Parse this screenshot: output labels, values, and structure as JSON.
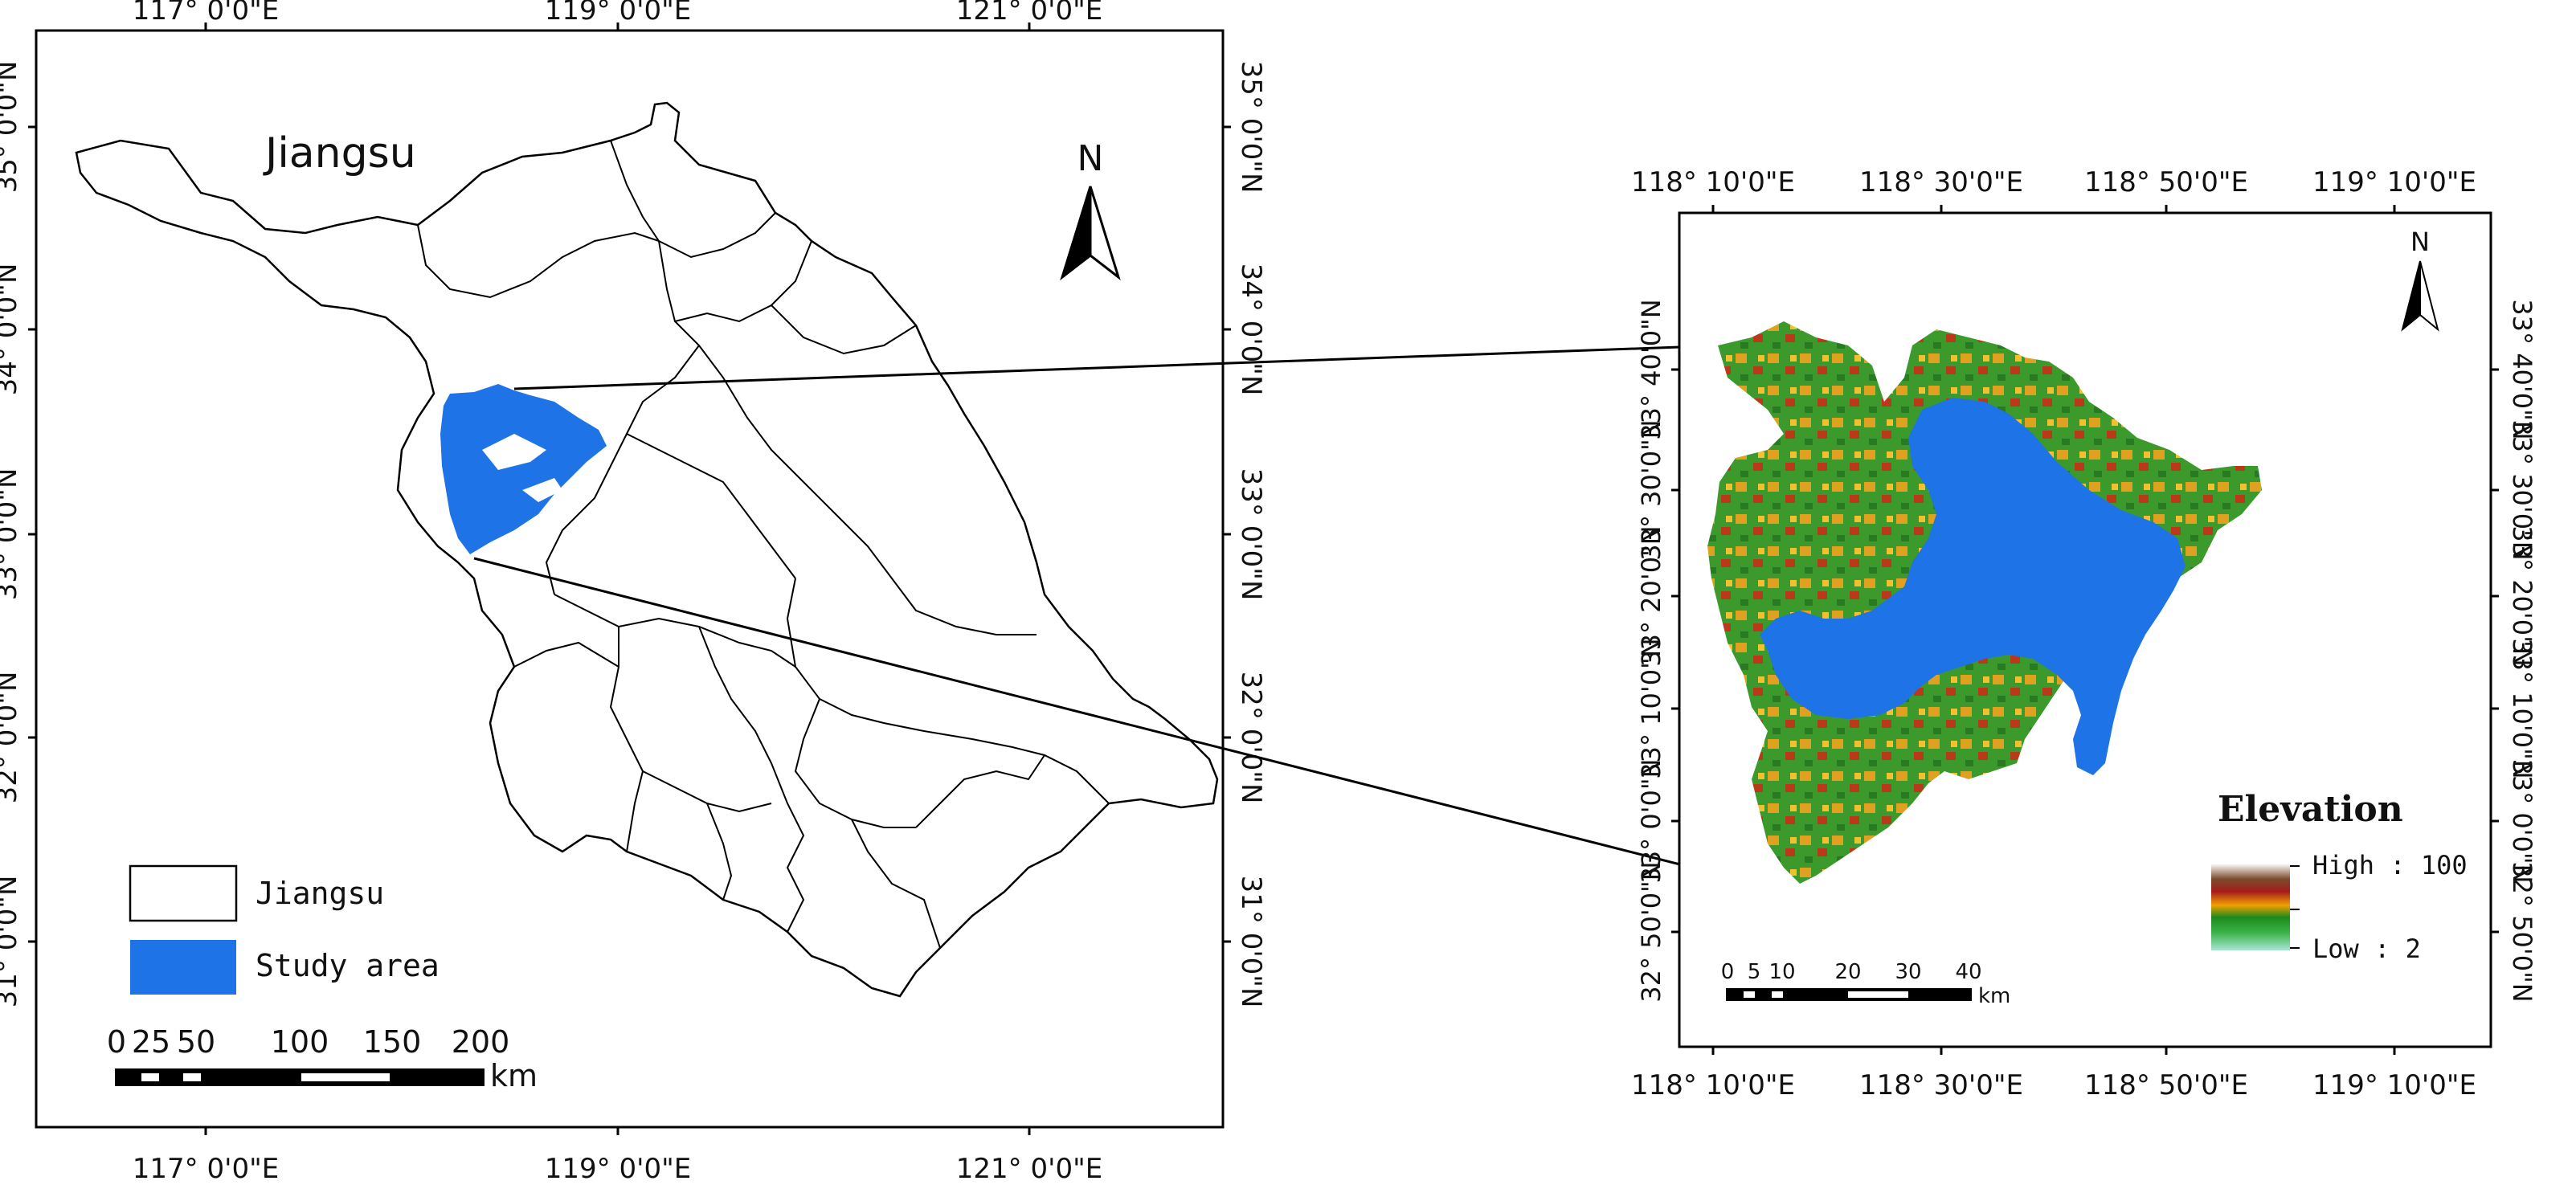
{
  "left_map": {
    "top_lon_labels": [
      "117°  0'0\"E",
      "119°  0'0\"E",
      "121°  0'0\"E"
    ],
    "bottom_lon_labels": [
      "117°  0'0\"E",
      "119°  0'0\"E",
      "121°  0'0\"E"
    ],
    "lat_labels": [
      "35°  0'0\"N",
      "34°  0'0\"N",
      "33°  0'0\"N",
      "32°  0'0\"N",
      "31°  0'0\"N"
    ],
    "region_title": "Jiangsu",
    "north_letter": "N",
    "legend": [
      {
        "label": "Jiangsu",
        "swatch": "#ffffff"
      },
      {
        "label": "Study area",
        "swatch": "#1e73e6"
      }
    ],
    "scale_ticks": [
      "0",
      "25",
      "50",
      "100",
      "150",
      "200"
    ],
    "scale_unit": "km"
  },
  "right_map": {
    "top_lon_labels": [
      "118°  10'0\"E",
      "118°  30'0\"E",
      "118°  50'0\"E",
      "119°  10'0\"E"
    ],
    "bottom_lon_labels": [
      "118°  10'0\"E",
      "118°  30'0\"E",
      "118°  50'0\"E",
      "119°  10'0\"E"
    ],
    "lat_labels": [
      "33°  40'0\"N",
      "33°  30'0\"N",
      "33°  20'0\"N",
      "33°  10'0\"N",
      "33°  0'0\"N",
      "32°  50'0\"N"
    ],
    "north_letter": "N",
    "legend_title": "Elevation",
    "legend_high": "High : 100",
    "legend_low": "Low : 2",
    "scale_ticks": [
      "0",
      "5",
      "10",
      "20",
      "30",
      "40"
    ],
    "scale_unit": "km"
  },
  "colors": {
    "lake": "#1e73e6",
    "frame": "#000000"
  }
}
